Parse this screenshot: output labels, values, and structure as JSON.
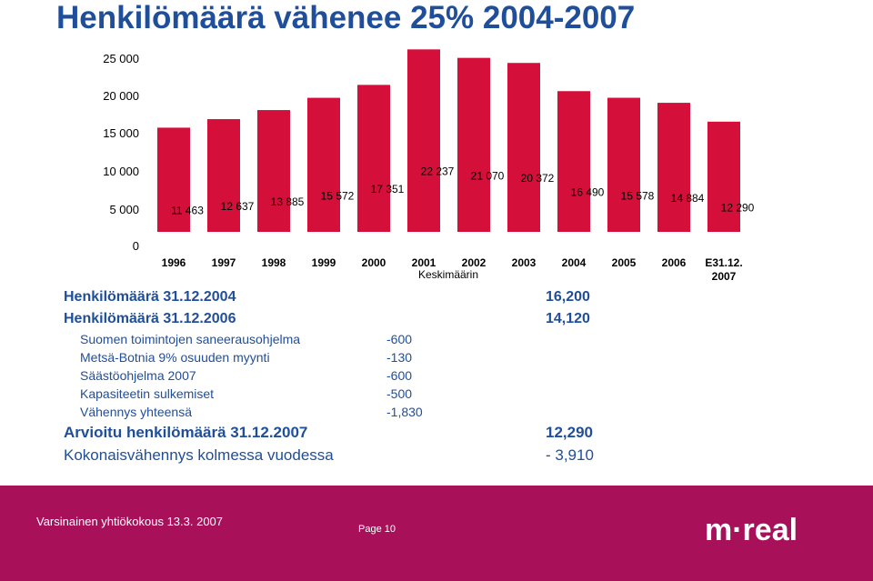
{
  "title": "Henkilömäärä vähenee 25% 2004-2007",
  "chart_data": {
    "type": "bar",
    "categories": [
      "1996",
      "1997",
      "1998",
      "1999",
      "2000",
      "2001",
      "2002",
      "2003",
      "2004",
      "2005",
      "2006",
      "E31.12. 2007"
    ],
    "values": [
      11463,
      12637,
      13885,
      15572,
      17351,
      22237,
      21070,
      20372,
      16490,
      15578,
      14884,
      12290
    ],
    "value_labels": [
      "11 463",
      "12 637",
      "13 885",
      "15 572",
      "17 351",
      "22 237",
      "21 070",
      "20 372",
      "16 490",
      "15 578",
      "14 884",
      "12 290"
    ],
    "ylim": [
      0,
      25000
    ],
    "y_ticks": [
      "0",
      "5 000",
      "10 000",
      "15 000",
      "20 000",
      "25 000"
    ],
    "x_note": "Keskimäärin",
    "bar_color": "#d4103a",
    "grid": false
  },
  "summary": {
    "rows": [
      {
        "label": "Henkilömäärä 31.12.2004",
        "value": "16,200"
      },
      {
        "label": "Henkilömäärä 31.12.2006",
        "value": "14,120"
      }
    ],
    "items": [
      {
        "label": "Suomen toimintojen saneerausohjelma",
        "value": "-600"
      },
      {
        "label": "Metsä-Botnia 9% osuuden myynti",
        "value": "-130"
      },
      {
        "label": "Säästöohjelma 2007",
        "value": "-600"
      },
      {
        "label": "Kapasiteetin sulkemiset",
        "value": "-500"
      },
      {
        "label": "Vähennys yhteensä",
        "value": "-1,830"
      }
    ],
    "estimate": {
      "label": "Arvioitu henkilömäärä 31.12.2007",
      "value": "12,290"
    },
    "total": {
      "label": "Kokonaisvähennys kolmessa vuodessa",
      "value": "- 3,910"
    }
  },
  "footer": {
    "meeting": "Varsinainen yhtiökokous 13.3. 2007",
    "page": "Page 10",
    "logo_text": "m·real",
    "background": "#a8115a"
  }
}
